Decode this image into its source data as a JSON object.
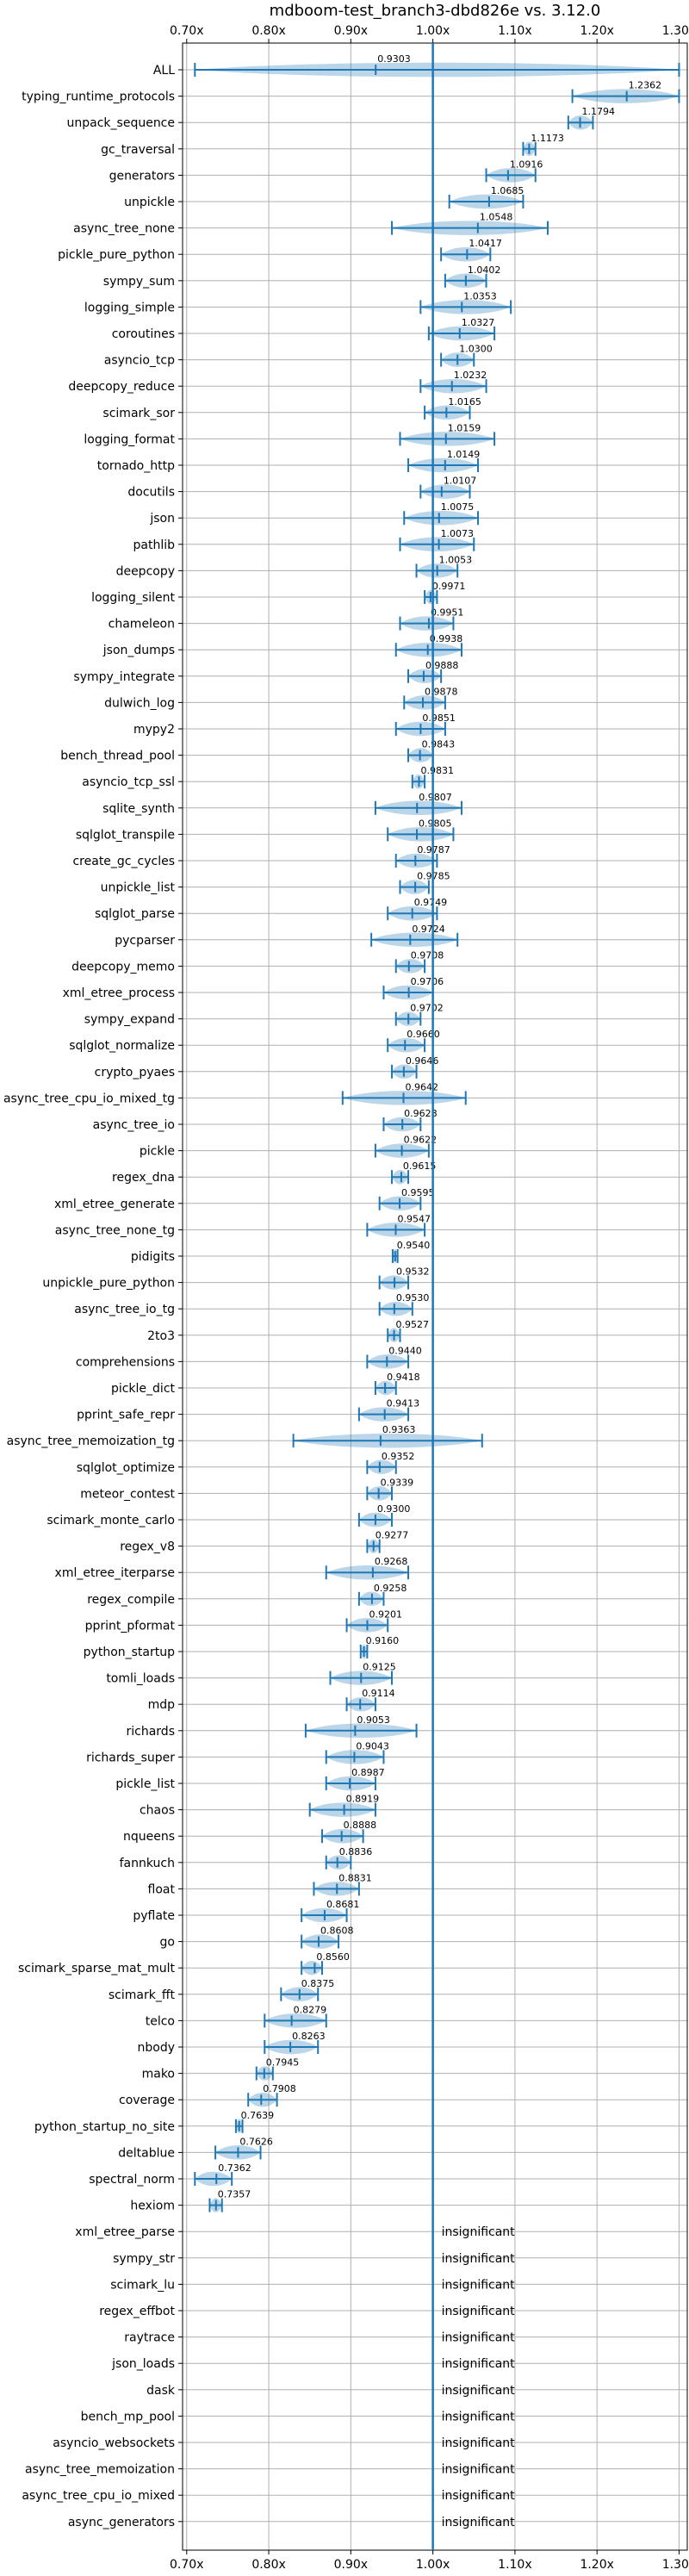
{
  "chart_data": {
    "type": "violin",
    "title": "mdboom-test_branch3-dbd826e vs. 3.12.0",
    "xlim": [
      0.695,
      1.31
    ],
    "xticks": [
      0.7,
      0.8,
      0.9,
      1.0,
      1.1,
      1.2,
      1.3
    ],
    "xtick_labels": [
      "0.70x",
      "0.80x",
      "0.90x",
      "1.00x",
      "1.10x",
      "1.20x",
      "1.30x"
    ],
    "reference_x": 1.0,
    "grid": true,
    "insignificant_label": "insignificant",
    "benchmarks": [
      {
        "name": "ALL",
        "mean": 0.9303,
        "label": "0.9303",
        "min": 0.71,
        "max": 1.3
      },
      {
        "name": "typing_runtime_protocols",
        "mean": 1.2362,
        "label": "1.2362",
        "min": 1.17,
        "max": 1.3
      },
      {
        "name": "unpack_sequence",
        "mean": 1.1794,
        "label": "1.1794",
        "min": 1.165,
        "max": 1.195
      },
      {
        "name": "gc_traversal",
        "mean": 1.1173,
        "label": "1.1173",
        "min": 1.11,
        "max": 1.125
      },
      {
        "name": "generators",
        "mean": 1.0916,
        "label": "1.0916",
        "min": 1.065,
        "max": 1.125
      },
      {
        "name": "unpickle",
        "mean": 1.0685,
        "label": "1.0685",
        "min": 1.02,
        "max": 1.11
      },
      {
        "name": "async_tree_none",
        "mean": 1.0548,
        "label": "1.0548",
        "min": 0.95,
        "max": 1.14
      },
      {
        "name": "pickle_pure_python",
        "mean": 1.0417,
        "label": "1.0417",
        "min": 1.01,
        "max": 1.07
      },
      {
        "name": "sympy_sum",
        "mean": 1.0402,
        "label": "1.0402",
        "min": 1.015,
        "max": 1.065
      },
      {
        "name": "logging_simple",
        "mean": 1.0353,
        "label": "1.0353",
        "min": 0.985,
        "max": 1.095
      },
      {
        "name": "coroutines",
        "mean": 1.0327,
        "label": "1.0327",
        "min": 0.995,
        "max": 1.075
      },
      {
        "name": "asyncio_tcp",
        "mean": 1.03,
        "label": "1.0300",
        "min": 1.01,
        "max": 1.05
      },
      {
        "name": "deepcopy_reduce",
        "mean": 1.0232,
        "label": "1.0232",
        "min": 0.985,
        "max": 1.065
      },
      {
        "name": "scimark_sor",
        "mean": 1.0165,
        "label": "1.0165",
        "min": 0.99,
        "max": 1.045
      },
      {
        "name": "logging_format",
        "mean": 1.0159,
        "label": "1.0159",
        "min": 0.96,
        "max": 1.075
      },
      {
        "name": "tornado_http",
        "mean": 1.0149,
        "label": "1.0149",
        "min": 0.97,
        "max": 1.055
      },
      {
        "name": "docutils",
        "mean": 1.0107,
        "label": "1.0107",
        "min": 0.985,
        "max": 1.045
      },
      {
        "name": "json",
        "mean": 1.0075,
        "label": "1.0075",
        "min": 0.965,
        "max": 1.055
      },
      {
        "name": "pathlib",
        "mean": 1.0073,
        "label": "1.0073",
        "min": 0.96,
        "max": 1.05
      },
      {
        "name": "deepcopy",
        "mean": 1.0053,
        "label": "1.0053",
        "min": 0.98,
        "max": 1.03
      },
      {
        "name": "logging_silent",
        "mean": 0.9971,
        "label": "0.9971",
        "min": 0.99,
        "max": 1.005
      },
      {
        "name": "chameleon",
        "mean": 0.9951,
        "label": "0.9951",
        "min": 0.96,
        "max": 1.025
      },
      {
        "name": "json_dumps",
        "mean": 0.9938,
        "label": "0.9938",
        "min": 0.955,
        "max": 1.035
      },
      {
        "name": "sympy_integrate",
        "mean": 0.9888,
        "label": "0.9888",
        "min": 0.97,
        "max": 1.01
      },
      {
        "name": "dulwich_log",
        "mean": 0.9878,
        "label": "0.9878",
        "min": 0.965,
        "max": 1.015
      },
      {
        "name": "mypy2",
        "mean": 0.9851,
        "label": "0.9851",
        "min": 0.955,
        "max": 1.015
      },
      {
        "name": "bench_thread_pool",
        "mean": 0.9843,
        "label": "0.9843",
        "min": 0.97,
        "max": 1.0
      },
      {
        "name": "asyncio_tcp_ssl",
        "mean": 0.9831,
        "label": "0.9831",
        "min": 0.975,
        "max": 0.99
      },
      {
        "name": "sqlite_synth",
        "mean": 0.9807,
        "label": "0.9807",
        "min": 0.93,
        "max": 1.035
      },
      {
        "name": "sqlglot_transpile",
        "mean": 0.9805,
        "label": "0.9805",
        "min": 0.945,
        "max": 1.025
      },
      {
        "name": "create_gc_cycles",
        "mean": 0.9787,
        "label": "0.9787",
        "min": 0.955,
        "max": 1.005
      },
      {
        "name": "unpickle_list",
        "mean": 0.9785,
        "label": "0.9785",
        "min": 0.96,
        "max": 0.995
      },
      {
        "name": "sqlglot_parse",
        "mean": 0.9749,
        "label": "0.9749",
        "min": 0.945,
        "max": 1.005
      },
      {
        "name": "pycparser",
        "mean": 0.9724,
        "label": "0.9724",
        "min": 0.925,
        "max": 1.03
      },
      {
        "name": "deepcopy_memo",
        "mean": 0.9708,
        "label": "0.9708",
        "min": 0.955,
        "max": 0.99
      },
      {
        "name": "xml_etree_process",
        "mean": 0.9706,
        "label": "0.9706",
        "min": 0.94,
        "max": 1.0
      },
      {
        "name": "sympy_expand",
        "mean": 0.9702,
        "label": "0.9702",
        "min": 0.955,
        "max": 0.985
      },
      {
        "name": "sqlglot_normalize",
        "mean": 0.966,
        "label": "0.9660",
        "min": 0.945,
        "max": 0.99
      },
      {
        "name": "crypto_pyaes",
        "mean": 0.9646,
        "label": "0.9646",
        "min": 0.95,
        "max": 0.98
      },
      {
        "name": "async_tree_cpu_io_mixed_tg",
        "mean": 0.9642,
        "label": "0.9642",
        "min": 0.89,
        "max": 1.04
      },
      {
        "name": "async_tree_io",
        "mean": 0.9628,
        "label": "0.9628",
        "min": 0.94,
        "max": 0.985
      },
      {
        "name": "pickle",
        "mean": 0.9622,
        "label": "0.9622",
        "min": 0.93,
        "max": 0.995
      },
      {
        "name": "regex_dna",
        "mean": 0.9615,
        "label": "0.9615",
        "min": 0.95,
        "max": 0.97
      },
      {
        "name": "xml_etree_generate",
        "mean": 0.9595,
        "label": "0.9595",
        "min": 0.935,
        "max": 0.985
      },
      {
        "name": "async_tree_none_tg",
        "mean": 0.9547,
        "label": "0.9547",
        "min": 0.92,
        "max": 0.99
      },
      {
        "name": "pidigits",
        "mean": 0.954,
        "label": "0.9540",
        "min": 0.951,
        "max": 0.957
      },
      {
        "name": "unpickle_pure_python",
        "mean": 0.9532,
        "label": "0.9532",
        "min": 0.935,
        "max": 0.97
      },
      {
        "name": "async_tree_io_tg",
        "mean": 0.953,
        "label": "0.9530",
        "min": 0.935,
        "max": 0.975
      },
      {
        "name": "2to3",
        "mean": 0.9527,
        "label": "0.9527",
        "min": 0.945,
        "max": 0.96
      },
      {
        "name": "comprehensions",
        "mean": 0.944,
        "label": "0.9440",
        "min": 0.92,
        "max": 0.97
      },
      {
        "name": "pickle_dict",
        "mean": 0.9418,
        "label": "0.9418",
        "min": 0.93,
        "max": 0.955
      },
      {
        "name": "pprint_safe_repr",
        "mean": 0.9413,
        "label": "0.9413",
        "min": 0.91,
        "max": 0.97
      },
      {
        "name": "async_tree_memoization_tg",
        "mean": 0.9363,
        "label": "0.9363",
        "min": 0.83,
        "max": 1.06
      },
      {
        "name": "sqlglot_optimize",
        "mean": 0.9352,
        "label": "0.9352",
        "min": 0.92,
        "max": 0.955
      },
      {
        "name": "meteor_contest",
        "mean": 0.9339,
        "label": "0.9339",
        "min": 0.92,
        "max": 0.95
      },
      {
        "name": "scimark_monte_carlo",
        "mean": 0.93,
        "label": "0.9300",
        "min": 0.91,
        "max": 0.95
      },
      {
        "name": "regex_v8",
        "mean": 0.9277,
        "label": "0.9277",
        "min": 0.92,
        "max": 0.935
      },
      {
        "name": "xml_etree_iterparse",
        "mean": 0.9268,
        "label": "0.9268",
        "min": 0.87,
        "max": 0.97
      },
      {
        "name": "regex_compile",
        "mean": 0.9258,
        "label": "0.9258",
        "min": 0.91,
        "max": 0.94
      },
      {
        "name": "pprint_pformat",
        "mean": 0.9201,
        "label": "0.9201",
        "min": 0.895,
        "max": 0.945
      },
      {
        "name": "python_startup",
        "mean": 0.916,
        "label": "0.9160",
        "min": 0.912,
        "max": 0.92
      },
      {
        "name": "tomli_loads",
        "mean": 0.9125,
        "label": "0.9125",
        "min": 0.875,
        "max": 0.95
      },
      {
        "name": "mdp",
        "mean": 0.9114,
        "label": "0.9114",
        "min": 0.895,
        "max": 0.93
      },
      {
        "name": "richards",
        "mean": 0.9053,
        "label": "0.9053",
        "min": 0.845,
        "max": 0.98
      },
      {
        "name": "richards_super",
        "mean": 0.9043,
        "label": "0.9043",
        "min": 0.87,
        "max": 0.94
      },
      {
        "name": "pickle_list",
        "mean": 0.8987,
        "label": "0.8987",
        "min": 0.87,
        "max": 0.93
      },
      {
        "name": "chaos",
        "mean": 0.8919,
        "label": "0.8919",
        "min": 0.85,
        "max": 0.93
      },
      {
        "name": "nqueens",
        "mean": 0.8888,
        "label": "0.8888",
        "min": 0.865,
        "max": 0.915
      },
      {
        "name": "fannkuch",
        "mean": 0.8836,
        "label": "0.8836",
        "min": 0.87,
        "max": 0.9
      },
      {
        "name": "float",
        "mean": 0.8831,
        "label": "0.8831",
        "min": 0.855,
        "max": 0.91
      },
      {
        "name": "pyflate",
        "mean": 0.8681,
        "label": "0.8681",
        "min": 0.84,
        "max": 0.895
      },
      {
        "name": "go",
        "mean": 0.8608,
        "label": "0.8608",
        "min": 0.84,
        "max": 0.885
      },
      {
        "name": "scimark_sparse_mat_mult",
        "mean": 0.856,
        "label": "0.8560",
        "min": 0.84,
        "max": 0.865
      },
      {
        "name": "scimark_fft",
        "mean": 0.8375,
        "label": "0.8375",
        "min": 0.815,
        "max": 0.86
      },
      {
        "name": "telco",
        "mean": 0.8279,
        "label": "0.8279",
        "min": 0.795,
        "max": 0.87
      },
      {
        "name": "nbody",
        "mean": 0.8263,
        "label": "0.8263",
        "min": 0.795,
        "max": 0.86
      },
      {
        "name": "mako",
        "mean": 0.7945,
        "label": "0.7945",
        "min": 0.785,
        "max": 0.805
      },
      {
        "name": "coverage",
        "mean": 0.7908,
        "label": "0.7908",
        "min": 0.775,
        "max": 0.81
      },
      {
        "name": "python_startup_no_site",
        "mean": 0.7639,
        "label": "0.7639",
        "min": 0.76,
        "max": 0.768
      },
      {
        "name": "deltablue",
        "mean": 0.7626,
        "label": "0.7626",
        "min": 0.735,
        "max": 0.79
      },
      {
        "name": "spectral_norm",
        "mean": 0.7362,
        "label": "0.7362",
        "min": 0.71,
        "max": 0.755
      },
      {
        "name": "hexiom",
        "mean": 0.7357,
        "label": "0.7357",
        "min": 0.728,
        "max": 0.743
      },
      {
        "name": "xml_etree_parse",
        "insignificant": true
      },
      {
        "name": "sympy_str",
        "insignificant": true
      },
      {
        "name": "scimark_lu",
        "insignificant": true
      },
      {
        "name": "regex_effbot",
        "insignificant": true
      },
      {
        "name": "raytrace",
        "insignificant": true
      },
      {
        "name": "json_loads",
        "insignificant": true
      },
      {
        "name": "dask",
        "insignificant": true
      },
      {
        "name": "bench_mp_pool",
        "insignificant": true
      },
      {
        "name": "asyncio_websockets",
        "insignificant": true
      },
      {
        "name": "async_tree_memoization",
        "insignificant": true
      },
      {
        "name": "async_tree_cpu_io_mixed",
        "insignificant": true
      },
      {
        "name": "async_generators",
        "insignificant": true
      }
    ]
  }
}
